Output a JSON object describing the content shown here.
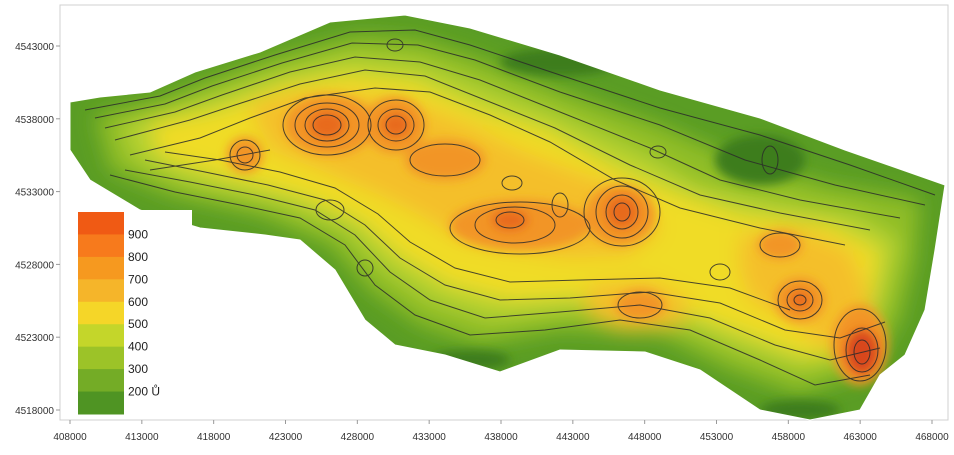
{
  "map": {
    "x_ticks": [
      "408000",
      "413000",
      "418000",
      "423000",
      "428000",
      "433000",
      "438000",
      "443000",
      "448000",
      "453000",
      "458000",
      "463000",
      "468000"
    ],
    "y_ticks": [
      "4543000",
      "4538000",
      "4533000",
      "4528000",
      "4523000",
      "4518000"
    ],
    "legend": {
      "entries": [
        {
          "label": "900",
          "color": "#f05a14"
        },
        {
          "label": "800",
          "color": "#f77a1c"
        },
        {
          "label": "700",
          "color": "#f6991f"
        },
        {
          "label": "600",
          "color": "#f5b52a"
        },
        {
          "label": "500",
          "color": "#f5d628"
        },
        {
          "label": "400",
          "color": "#c4d62a"
        },
        {
          "label": "300",
          "color": "#9cc328"
        },
        {
          "label": "200 Ů",
          "color": "#74ac26"
        },
        {
          "label": "",
          "color": "#4f9423"
        }
      ]
    },
    "colors": {
      "base_green": "#5a9d24",
      "mid_green": "#8fbd28",
      "light_green": "#b6d230",
      "yellow": "#f0dc28",
      "light_orange": "#f4bf2c",
      "orange": "#f29528",
      "dark_orange": "#e86b1c",
      "peak_red": "#d8461a",
      "dark_green": "#3e7d1c",
      "contour": "#2b2b2b"
    }
  },
  "chart_data": {
    "type": "heatmap",
    "description_units": "map coordinates (easting / northing, m)",
    "xlim": [
      408000,
      468000
    ],
    "ylim": [
      4518000,
      4545000
    ],
    "x_ticks": [
      408000,
      413000,
      418000,
      423000,
      428000,
      433000,
      438000,
      443000,
      448000,
      453000,
      458000,
      463000,
      468000
    ],
    "y_ticks": [
      4518000,
      4523000,
      4528000,
      4533000,
      4538000,
      4543000
    ],
    "legend_levels": [
      900,
      800,
      700,
      600,
      500,
      400,
      300,
      200
    ],
    "legend_unit": "Ů",
    "grid": false,
    "legend_placement": "bottom-left"
  }
}
